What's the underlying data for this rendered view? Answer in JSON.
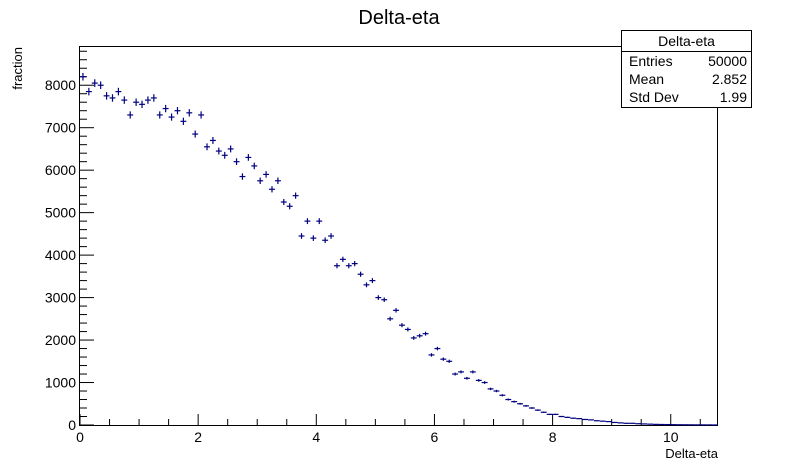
{
  "chart_data": {
    "type": "scatter",
    "title": "Delta-eta",
    "xlabel": "Delta-eta",
    "ylabel": "fraction",
    "xlim": [
      0,
      10.8
    ],
    "ylim": [
      0,
      8900
    ],
    "x_ticks": [
      0,
      2,
      4,
      6,
      8,
      10
    ],
    "y_ticks": [
      0,
      1000,
      2000,
      3000,
      4000,
      5000,
      6000,
      7000,
      8000
    ],
    "bin_width": 0.1,
    "series": [
      {
        "color": "#000080",
        "values": [
          8200,
          7850,
          8050,
          8000,
          7750,
          7700,
          7850,
          7650,
          7300,
          7600,
          7550,
          7650,
          7700,
          7300,
          7450,
          7250,
          7400,
          7150,
          7350,
          6850,
          7300,
          6550,
          6700,
          6450,
          6350,
          6500,
          6200,
          5850,
          6300,
          6100,
          5750,
          5900,
          5550,
          5750,
          5250,
          5150,
          5400,
          4450,
          4800,
          4400,
          4800,
          4350,
          4450,
          3750,
          3900,
          3750,
          3800,
          3550,
          3300,
          3400,
          3000,
          2950,
          2500,
          2700,
          2350,
          2250,
          2050,
          2100,
          2150,
          1650,
          1800,
          1550,
          1500,
          1200,
          1250,
          1100,
          1250,
          1050,
          1000,
          850,
          800,
          700,
          600,
          550,
          500,
          450,
          400,
          350,
          300,
          250,
          250,
          200,
          180,
          160,
          150,
          130,
          120,
          100,
          90,
          80,
          60,
          50,
          40,
          40,
          30,
          25,
          20,
          15,
          12,
          10,
          8,
          6,
          5,
          4,
          3,
          3,
          2,
          1
        ],
        "errors": [
          90,
          89,
          90,
          89,
          88,
          88,
          89,
          87,
          85,
          87,
          87,
          87,
          88,
          85,
          86,
          85,
          86,
          85,
          86,
          83,
          85,
          81,
          82,
          80,
          80,
          81,
          79,
          76,
          79,
          78,
          76,
          77,
          74,
          76,
          72,
          72,
          73,
          67,
          69,
          66,
          69,
          66,
          67,
          61,
          62,
          61,
          62,
          60,
          57,
          58,
          55,
          54,
          50,
          52,
          48,
          47,
          45,
          46,
          46,
          41,
          42,
          39,
          39,
          35,
          35,
          33,
          35,
          32,
          32,
          29,
          28,
          26,
          24,
          23,
          22,
          21,
          20,
          19,
          17,
          16,
          16,
          14,
          13,
          13,
          12,
          11,
          11,
          10,
          9,
          9,
          8,
          7,
          6,
          6,
          5,
          5,
          4,
          4,
          3,
          3,
          3,
          2,
          2,
          2,
          2,
          2,
          1,
          1
        ]
      }
    ]
  },
  "stats": {
    "title": "Delta-eta",
    "rows": [
      {
        "key": "Entries",
        "value": "50000"
      },
      {
        "key": "Mean",
        "value": "2.852"
      },
      {
        "key": "Std Dev",
        "value": "1.99"
      }
    ]
  }
}
